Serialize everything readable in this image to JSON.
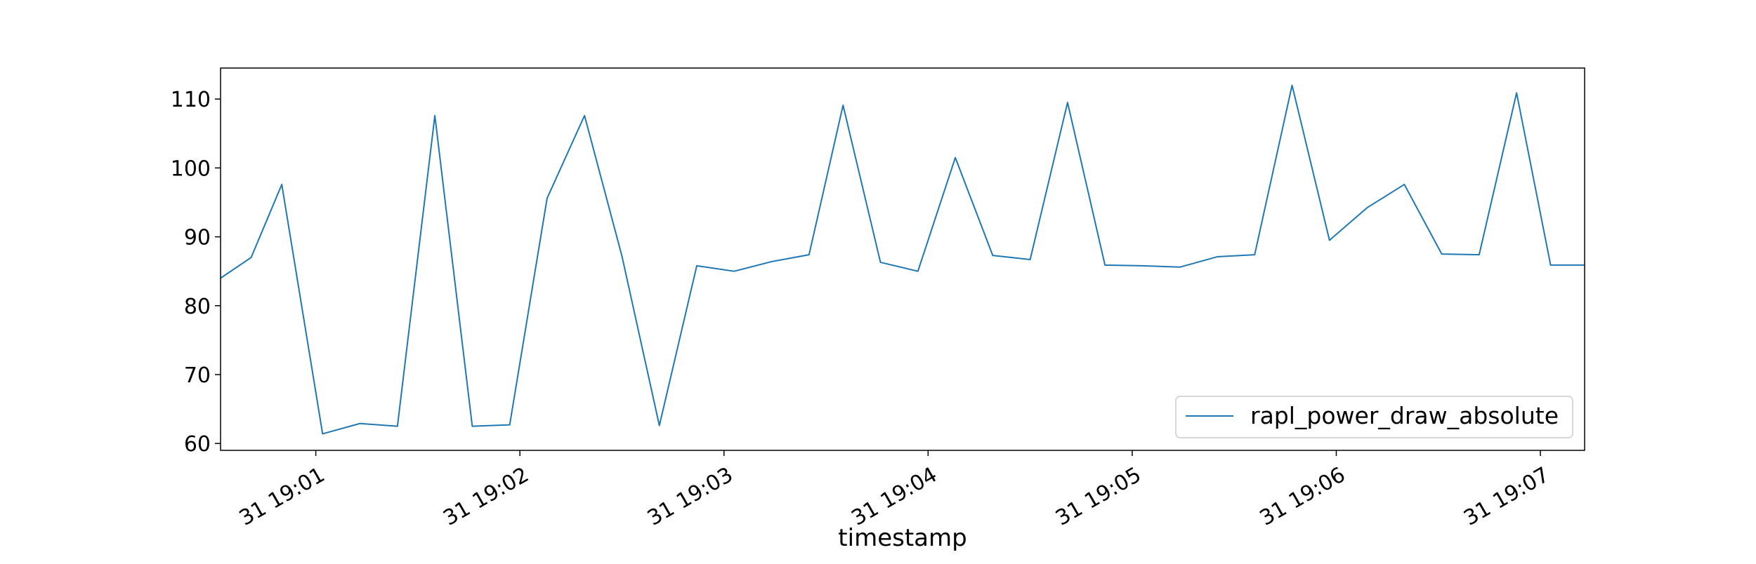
{
  "chart_data": {
    "type": "line",
    "title": "",
    "xlabel": "timestamp",
    "ylabel": "",
    "x_unit": "time (HH:MM:SS) on day 31",
    "x_range": [
      "19:00:32",
      "19:07:13"
    ],
    "ylim": [
      59,
      114.5
    ],
    "y_ticks": [
      60,
      70,
      80,
      90,
      100,
      110
    ],
    "x_ticks": [
      {
        "time": "19:01:00",
        "label": "31 19:01"
      },
      {
        "time": "19:02:00",
        "label": "31 19:02"
      },
      {
        "time": "19:03:00",
        "label": "31 19:03"
      },
      {
        "time": "19:04:00",
        "label": "31 19:04"
      },
      {
        "time": "19:05:00",
        "label": "31 19:05"
      },
      {
        "time": "19:06:00",
        "label": "31 19:06"
      },
      {
        "time": "19:07:00",
        "label": "31 19:07"
      }
    ],
    "grid": false,
    "legend_position": "lower-right",
    "series": [
      {
        "name": "rapl_power_draw_absolute",
        "color": "#1f77b4",
        "points": [
          [
            "19:00:32",
            84.0
          ],
          [
            "19:00:41",
            87.0
          ],
          [
            "19:00:50",
            97.6
          ],
          [
            "19:01:02",
            61.4
          ],
          [
            "19:01:13",
            62.9
          ],
          [
            "19:01:24",
            62.5
          ],
          [
            "19:01:35",
            107.6
          ],
          [
            "19:01:46",
            62.5
          ],
          [
            "19:01:57",
            62.7
          ],
          [
            "19:02:08",
            95.6
          ],
          [
            "19:02:19",
            107.6
          ],
          [
            "19:02:30",
            87.2
          ],
          [
            "19:02:41",
            62.6
          ],
          [
            "19:02:52",
            85.8
          ],
          [
            "19:03:03",
            85.0
          ],
          [
            "19:03:14",
            86.4
          ],
          [
            "19:03:25",
            87.4
          ],
          [
            "19:03:35",
            109.1
          ],
          [
            "19:03:46",
            86.3
          ],
          [
            "19:03:57",
            85.0
          ],
          [
            "19:04:08",
            101.5
          ],
          [
            "19:04:19",
            87.3
          ],
          [
            "19:04:30",
            86.7
          ],
          [
            "19:04:41",
            109.5
          ],
          [
            "19:04:52",
            85.9
          ],
          [
            "19:05:03",
            85.8
          ],
          [
            "19:05:14",
            85.6
          ],
          [
            "19:05:25",
            87.1
          ],
          [
            "19:05:36",
            87.4
          ],
          [
            "19:05:47",
            112.0
          ],
          [
            "19:05:58",
            89.5
          ],
          [
            "19:06:09",
            94.2
          ],
          [
            "19:06:20",
            97.6
          ],
          [
            "19:06:31",
            87.5
          ],
          [
            "19:06:42",
            87.4
          ],
          [
            "19:06:53",
            110.9
          ],
          [
            "19:07:03",
            85.9
          ],
          [
            "19:07:13",
            85.9
          ]
        ]
      }
    ]
  }
}
